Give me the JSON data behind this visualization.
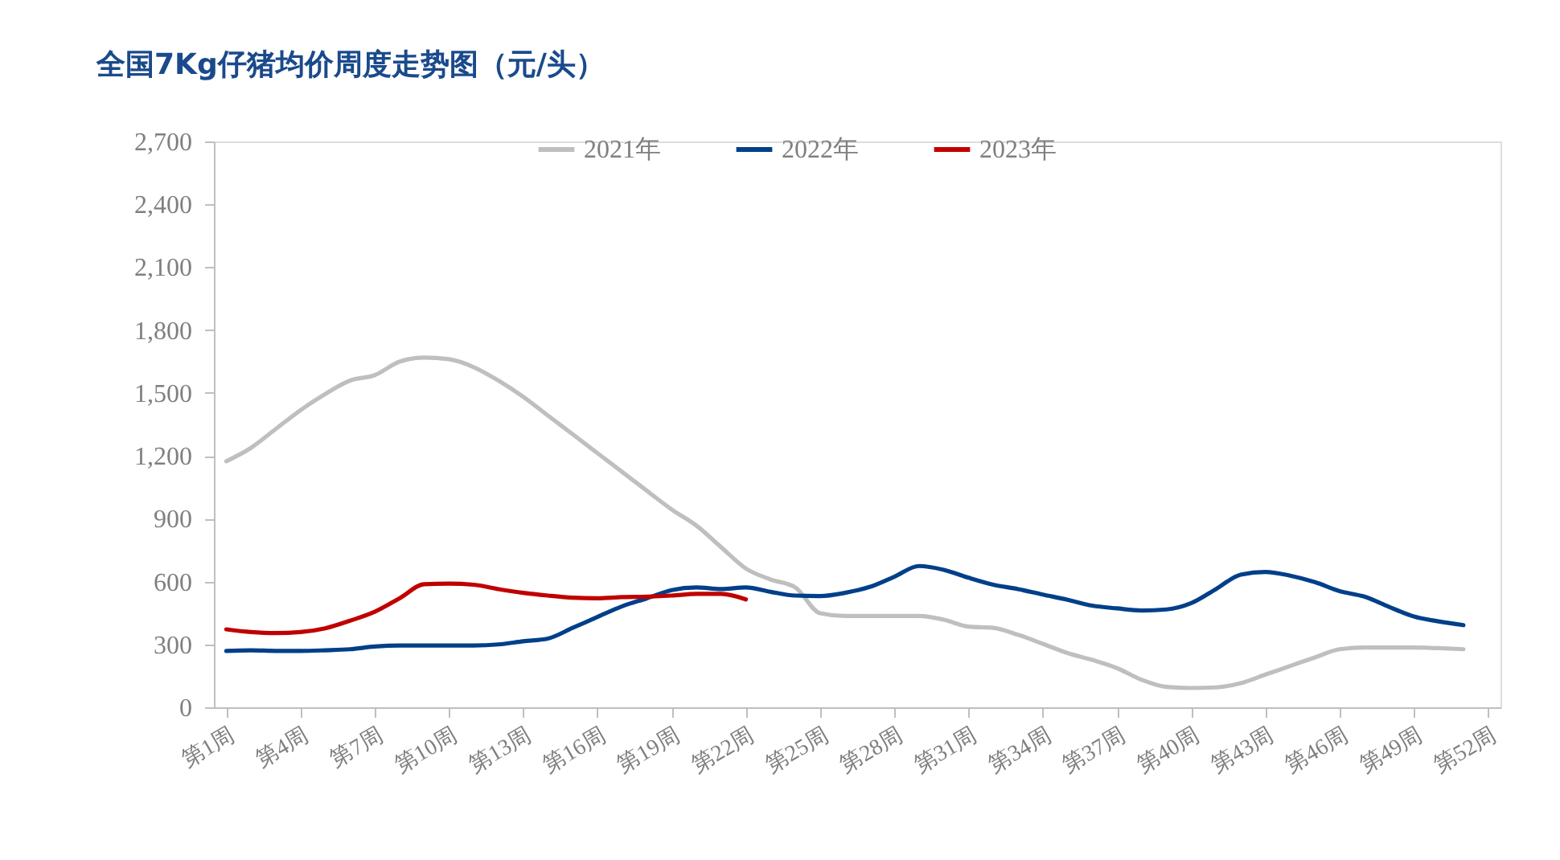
{
  "chart_data": {
    "type": "line",
    "title": "全国7Kg仔猪均价周度走势图（元/头）",
    "categories": [
      "第1周",
      null,
      null,
      "第4周",
      null,
      null,
      "第7周",
      null,
      null,
      "第10周",
      null,
      null,
      "第13周",
      null,
      null,
      "第16周",
      null,
      null,
      "第19周",
      null,
      null,
      "第22周",
      null,
      null,
      "第25周",
      null,
      null,
      "第28周",
      null,
      null,
      "第31周",
      null,
      null,
      "第34周",
      null,
      null,
      "第37周",
      null,
      null,
      "第40周",
      null,
      null,
      "第43周",
      null,
      null,
      "第46周",
      null,
      null,
      "第49周",
      null,
      null,
      "第52周"
    ],
    "series": [
      {
        "name": "2021年",
        "color": "#bfbfbf",
        "values": [
          1174,
          1238,
          1328,
          1418,
          1495,
          1559,
          1585,
          1649,
          1669,
          1661,
          1623,
          1559,
          1482,
          1392,
          1303,
          1213,
          1123,
          1033,
          944,
          867,
          764,
          662,
          610,
          572,
          449,
          436,
          436,
          436,
          436,
          418,
          385,
          379,
          346,
          303,
          259,
          226,
          187,
          131,
          97,
          92,
          95,
          115,
          156,
          197,
          238,
          277,
          285,
          285,
          285,
          282,
          277,
          null
        ]
      },
      {
        "name": "2022年",
        "color": "#003f8a",
        "values": [
          269,
          272,
          269,
          269,
          272,
          277,
          290,
          295,
          295,
          295,
          295,
          300,
          315,
          328,
          379,
          431,
          482,
          520,
          559,
          572,
          564,
          572,
          551,
          533,
          531,
          546,
          574,
          623,
          674,
          656,
          618,
          585,
          564,
          538,
          513,
          485,
          472,
          462,
          467,
          497,
          564,
          633,
          646,
          628,
          597,
          554,
          528,
          479,
          433,
          410,
          392,
          null
        ]
      },
      {
        "name": "2023年",
        "color": "#c00000",
        "values": [
          372,
          359,
          354,
          359,
          377,
          413,
          456,
          520,
          587,
          590,
          585,
          564,
          546,
          533,
          523,
          520,
          526,
          528,
          533,
          541,
          541,
          515,
          null,
          null,
          null,
          null,
          null,
          null,
          null,
          null,
          null,
          null,
          null,
          null,
          null,
          null,
          null,
          null,
          null,
          null,
          null,
          null,
          null,
          null,
          null,
          null,
          null,
          null,
          null,
          null,
          null,
          null
        ]
      }
    ],
    "ylim": [
      0,
      2700
    ],
    "yticks": [
      0,
      300,
      600,
      900,
      {
        "value": 1200,
        "label": "1,200"
      },
      {
        "value": 1500,
        "label": "1,500"
      },
      {
        "value": 1800,
        "label": "1,800"
      },
      {
        "value": 2100,
        "label": "2,100"
      },
      {
        "value": 2400,
        "label": "2,400"
      },
      {
        "value": 2700,
        "label": "2,700"
      }
    ],
    "grid": false,
    "legend": "top",
    "marker": "none",
    "line_style": "solid"
  }
}
